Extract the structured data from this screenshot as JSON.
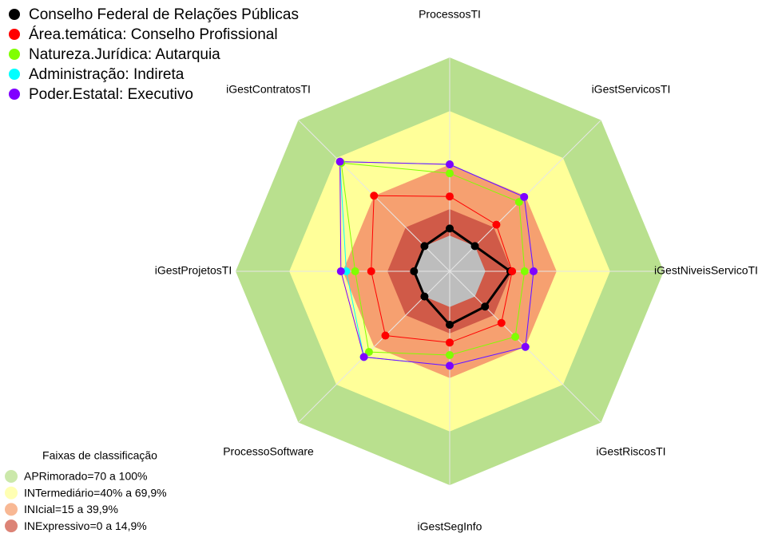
{
  "chart_data": {
    "type": "radar",
    "categories": [
      "ProcessosTI",
      "iGestServicosTI",
      "iGestNiveisServicoTI",
      "iGestRiscosTI",
      "iGestSegInfo",
      "ProcessoSoftware",
      "iGestProjetosTI",
      "iGestContratosTI"
    ],
    "ylim": [
      -20,
      100
    ],
    "series": [
      {
        "name": "Conselho Federal de Relações Públicas",
        "color": "#000000",
        "values": [
          4,
          0,
          14,
          8,
          10,
          0,
          0,
          0
        ]
      },
      {
        "name": "Área.temática: Conselho Profissional",
        "color": "#ff0000",
        "values": [
          22,
          17,
          15,
          21,
          20,
          31,
          24,
          40
        ]
      },
      {
        "name": "Natureza.Jurídica: Autarquia",
        "color": "#80ff00",
        "values": [
          35,
          35,
          22,
          32,
          27,
          44,
          33,
          66
        ]
      },
      {
        "name": "Administração: Indireta",
        "color": "#00ffff",
        "values": [
          40,
          39,
          27,
          40,
          33,
          48,
          38,
          67
        ]
      },
      {
        "name": "Poder.Estatal: Executivo",
        "color": "#8000ff",
        "values": [
          40,
          39,
          27,
          40,
          33,
          48,
          41,
          67
        ]
      }
    ],
    "bands_title": "Faixas de classificação",
    "bands": [
      {
        "label": "APRimorado=70 a 100%",
        "from": 70,
        "to": 100,
        "color": "#b9e08e"
      },
      {
        "label": "INTermediário=40% a 69,9%",
        "from": 40,
        "to": 69.9,
        "color": "#ffff99"
      },
      {
        "label": "INIcial=15 a 39,9%",
        "from": 15,
        "to": 39.9,
        "color": "#f6a070"
      },
      {
        "label": "INExpressivo=0 a 14,9%",
        "from": 0,
        "to": 14.9,
        "color": "#d05a48"
      }
    ]
  }
}
